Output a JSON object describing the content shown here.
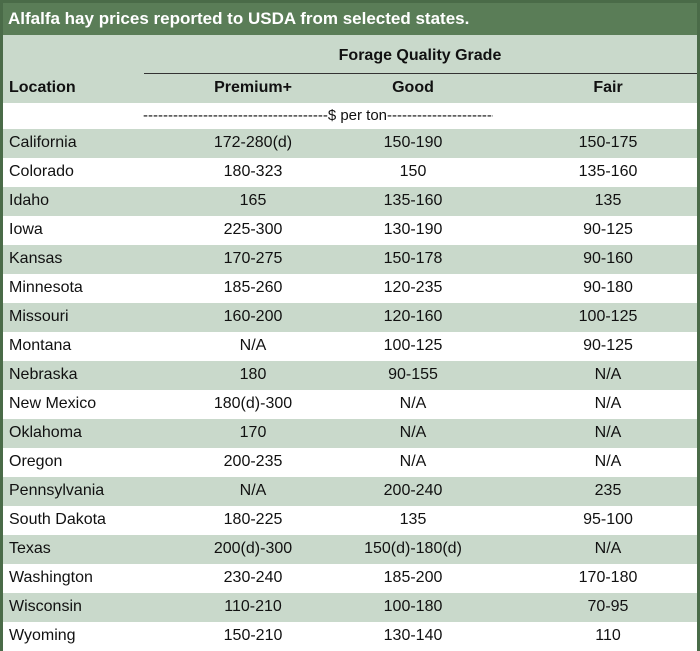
{
  "title": "Alfalfa hay prices reported to USDA from selected states.",
  "header": {
    "group_label": "Forage Quality Grade",
    "location_label": "Location",
    "columns": [
      "Premium+",
      "Good",
      "Fair"
    ]
  },
  "unit_line": "-------------------------------------$ per ton-----------------------------------",
  "rows": [
    {
      "location": "California",
      "premium": "172-280(d)",
      "good": "150-190",
      "fair": "150-175"
    },
    {
      "location": "Colorado",
      "premium": "180-323",
      "good": "150",
      "fair": "135-160"
    },
    {
      "location": "Idaho",
      "premium": "165",
      "good": "135-160",
      "fair": "135"
    },
    {
      "location": "Iowa",
      "premium": "225-300",
      "good": "130-190",
      "fair": "90-125"
    },
    {
      "location": "Kansas",
      "premium": "170-275",
      "good": "150-178",
      "fair": "90-160"
    },
    {
      "location": "Minnesota",
      "premium": "185-260",
      "good": "120-235",
      "fair": "90-180"
    },
    {
      "location": "Missouri",
      "premium": "160-200",
      "good": "120-160",
      "fair": "100-125"
    },
    {
      "location": "Montana",
      "premium": "N/A",
      "good": "100-125",
      "fair": "90-125"
    },
    {
      "location": "Nebraska",
      "premium": "180",
      "good": "90-155",
      "fair": "N/A"
    },
    {
      "location": "New Mexico",
      "premium": "180(d)-300",
      "good": "N/A",
      "fair": "N/A"
    },
    {
      "location": "Oklahoma",
      "premium": "170",
      "good": "N/A",
      "fair": "N/A"
    },
    {
      "location": "Oregon",
      "premium": "200-235",
      "good": "N/A",
      "fair": "N/A"
    },
    {
      "location": "Pennsylvania",
      "premium": "N/A",
      "good": "200-240",
      "fair": "235"
    },
    {
      "location": "South Dakota",
      "premium": "180-225",
      "good": "135",
      "fair": "95-100"
    },
    {
      "location": "Texas",
      "premium": "200(d)-300",
      "good": "150(d)-180(d)",
      "fair": "N/A"
    },
    {
      "location": "Washington",
      "premium": "230-240",
      "good": "185-200",
      "fair": "170-180"
    },
    {
      "location": "Wisconsin",
      "premium": "110-210",
      "good": "100-180",
      "fair": "70-95"
    },
    {
      "location": "Wyoming",
      "premium": "150-210",
      "good": "130-140",
      "fair": "110"
    }
  ]
}
